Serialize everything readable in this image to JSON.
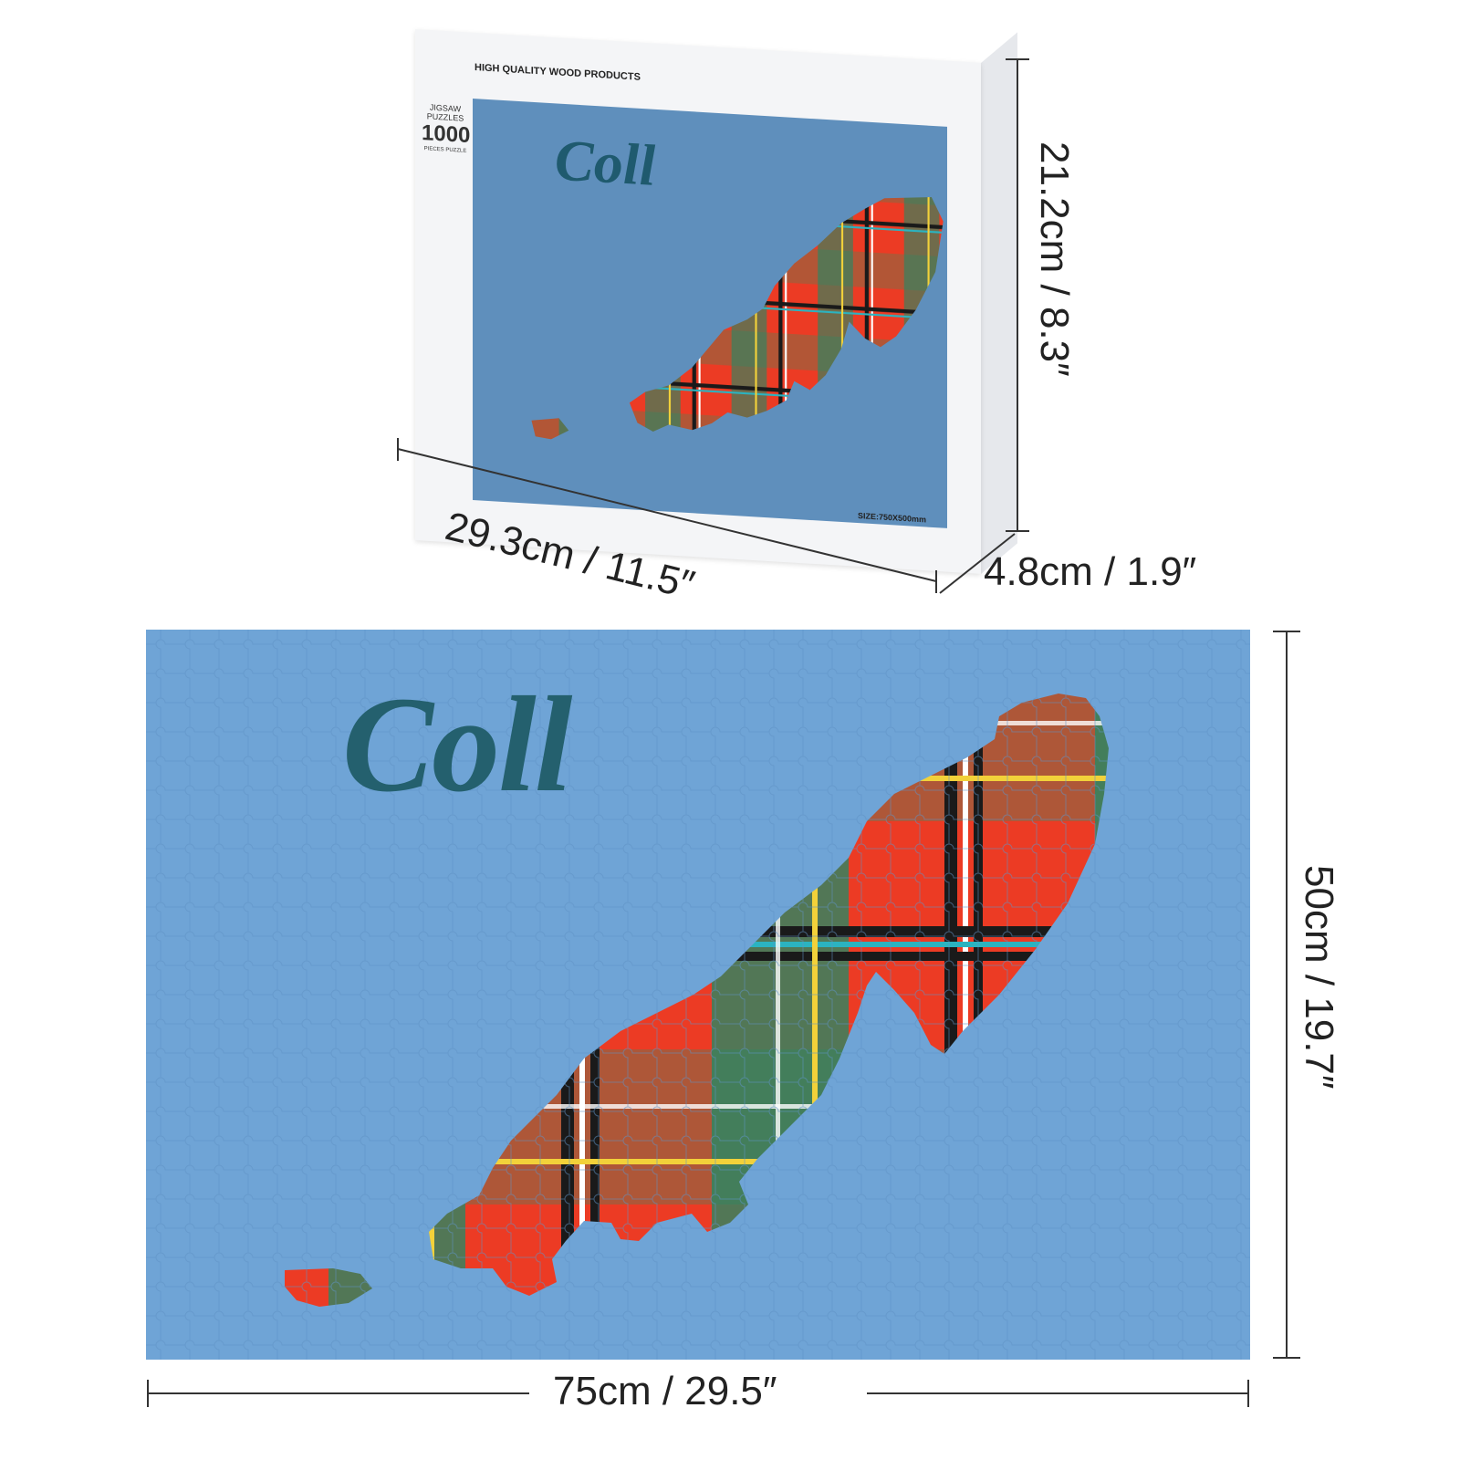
{
  "product": {
    "title": "Coll",
    "box": {
      "brand": "HIGH QUALITY WOOD PRODUCTS",
      "label_small": "JIGSAW PUZZLES",
      "piece_count": "1000",
      "label_tiny": "PIECES PUZZLE",
      "size_label": "SIZE:750X500mm",
      "art_color": "#5f8fbc"
    },
    "dimensions": {
      "box_width": "29.3cm / 11.5″",
      "box_height": "21.2cm / 8.3″",
      "box_depth": "4.8cm / 1.9″",
      "puzzle_width": "75cm / 29.5″",
      "puzzle_height": "50cm / 19.7″"
    },
    "colors": {
      "sea": "#6fa4d6",
      "title": "#24606e",
      "tartan_red": "#ec3b24",
      "tartan_green": "#1e8a66",
      "tartan_brown": "#a85a3a"
    }
  }
}
